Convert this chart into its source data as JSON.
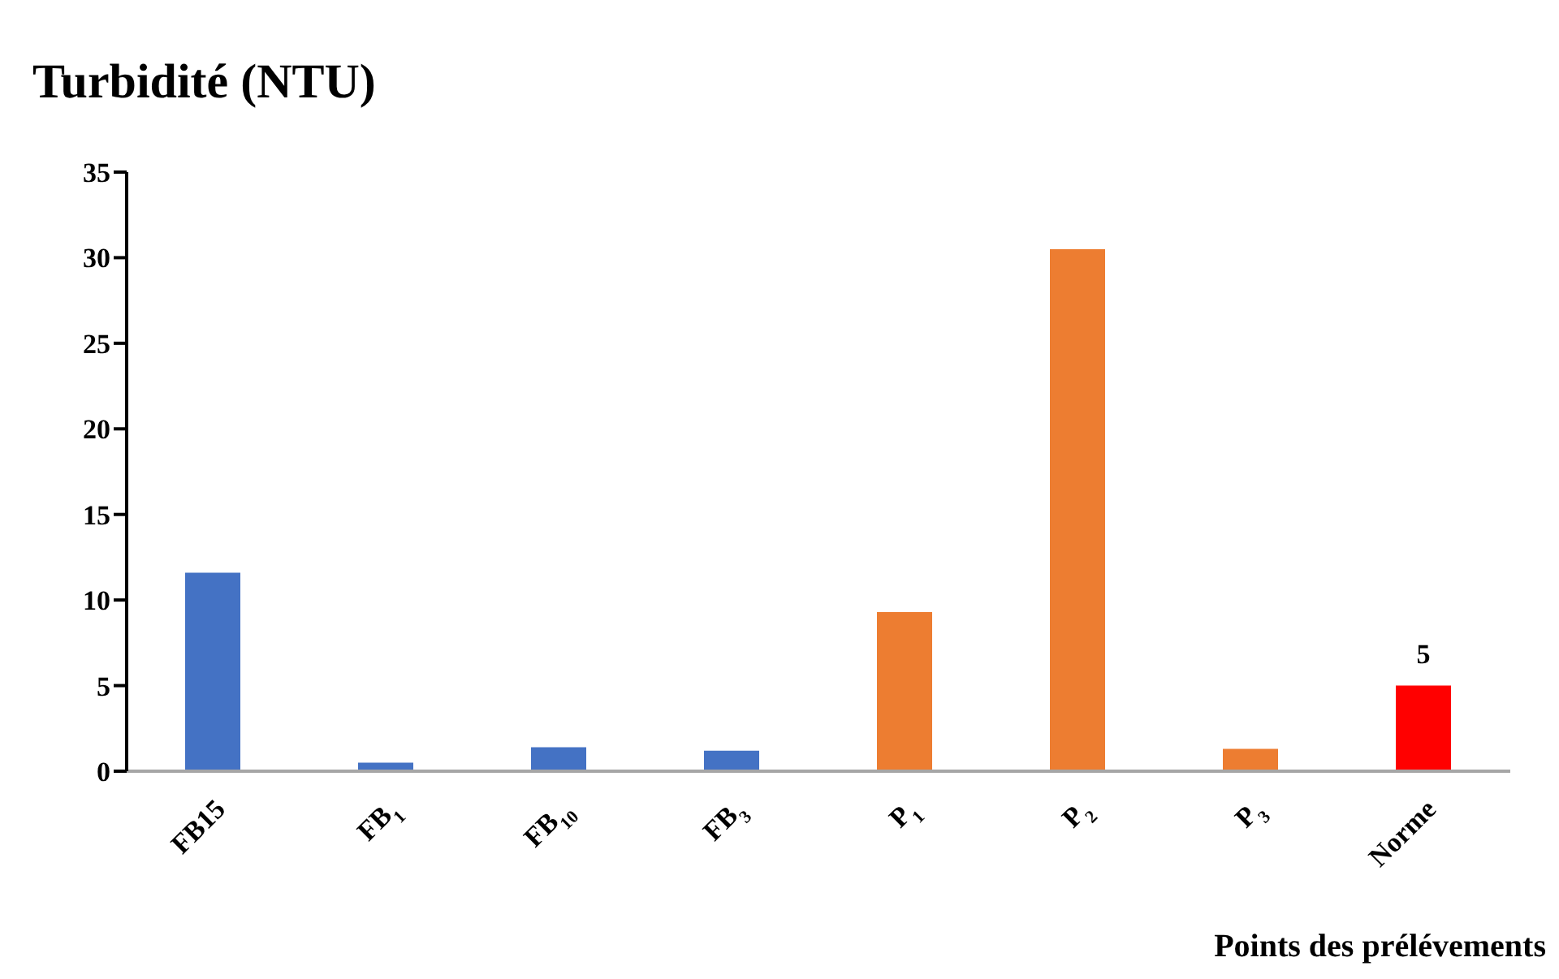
{
  "chart_data": {
    "type": "bar",
    "title": "Turbidité  (NTU)",
    "xlabel": "Points des prélévements",
    "categories": [
      "FB15",
      "FB$_{1}$",
      "FB$_{10}$",
      "FB$_{3}$",
      "P$_{1}$",
      "P$_{2}$",
      "P$_{3}$",
      "Norme"
    ],
    "values": [
      11.6,
      0.5,
      1.4,
      1.2,
      9.3,
      30.5,
      1.3,
      5
    ],
    "colors": [
      "#4472c4",
      "#4472c4",
      "#4472c4",
      "#4472c4",
      "#ed7d31",
      "#ed7d31",
      "#ed7d31",
      "#ff0000"
    ],
    "value_labels": [
      null,
      null,
      null,
      null,
      null,
      null,
      null,
      "5"
    ],
    "ylim": [
      0,
      35
    ],
    "yticks": [
      0,
      5,
      10,
      15,
      20,
      25,
      30,
      35
    ],
    "grid": false,
    "legend": false
  }
}
